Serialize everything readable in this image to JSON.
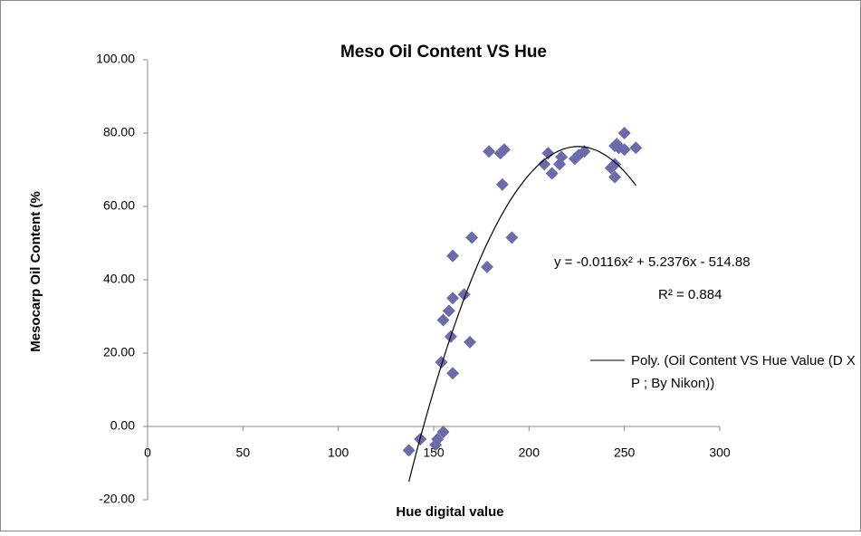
{
  "chart_data": {
    "type": "scatter",
    "title": "Meso Oil Content VS Hue",
    "x_label": "Hue digital value",
    "y_label": "Mesocarp Oil Content (%",
    "series": [
      {
        "name": "Oil Content VS Hue Value (D X P ; By Nikon)",
        "color": "#6b6ba9",
        "x": [
          137,
          143,
          151,
          152,
          155,
          154,
          155,
          158,
          159,
          160,
          160,
          160,
          166,
          169,
          170,
          178,
          179,
          185,
          186,
          187,
          191,
          208,
          210,
          212,
          216,
          217,
          224,
          226,
          229,
          243,
          245,
          245,
          245,
          246,
          247,
          250,
          250,
          256
        ],
        "values": [
          -6.5,
          -3.5,
          -5,
          -3.5,
          -1.5,
          17.5,
          29,
          31.5,
          24.5,
          14.5,
          35,
          46.5,
          36,
          23,
          51.5,
          43.5,
          75,
          74.5,
          66,
          75.5,
          51.5,
          71.5,
          74.5,
          69,
          71.5,
          73.5,
          73,
          74,
          75,
          70.5,
          68,
          71.5,
          76.5,
          77,
          76,
          75.5,
          80,
          76
        ]
      }
    ],
    "trendline": {
      "name": "Poly. (Oil Content VS Hue Value (D X P ; By Nikon))",
      "coefficients": [
        -0.0116,
        5.2376,
        -514.88
      ],
      "equation": "y = -0.0116x² + 5.2376x - 514.88",
      "r2": "R² = 0.884",
      "color": "#000000"
    },
    "xlim": [
      0,
      300
    ],
    "xticks": [
      0,
      50,
      100,
      150,
      200,
      250,
      300
    ],
    "ylim": [
      -20,
      100
    ],
    "yticks": [
      {
        "value": -20,
        "label": "-20.00"
      },
      {
        "value": 0,
        "label": "0.00"
      },
      {
        "value": 20,
        "label": "20.00"
      },
      {
        "value": 40,
        "label": "40.00"
      },
      {
        "value": 60,
        "label": "60.00"
      },
      {
        "value": 80,
        "label": "80.00"
      },
      {
        "value": 100,
        "label": "100.00"
      }
    ],
    "grid": false
  }
}
